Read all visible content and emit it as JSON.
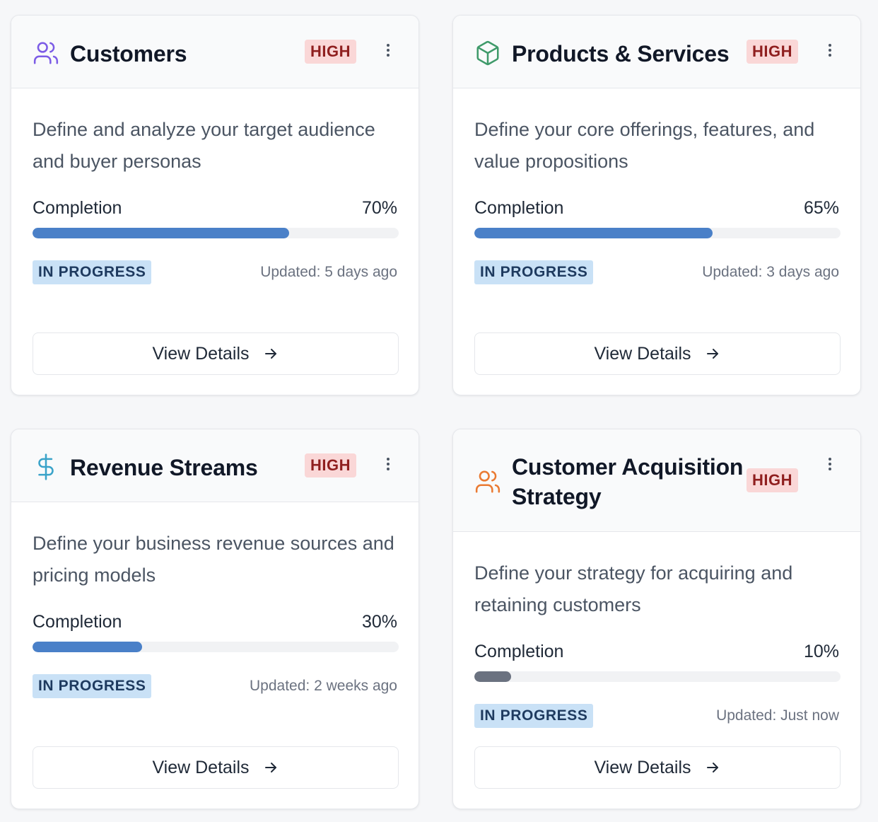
{
  "cards": [
    {
      "title": "Customers",
      "icon": "users-icon",
      "icon_color": "#7c5ce6",
      "priority": "HIGH",
      "description": "Define and analyze your target audience and buyer personas",
      "completion_label": "Completion",
      "completion_text": "70%",
      "completion": 70,
      "bar_color": "#4a80c8",
      "status": "IN PROGRESS",
      "updated": "Updated: 5 days ago",
      "button_label": "View Details"
    },
    {
      "title": "Products & Services",
      "icon": "box-icon",
      "icon_color": "#3f9a6a",
      "priority": "HIGH",
      "description": "Define your core offerings, features, and value propositions",
      "completion_label": "Completion",
      "completion_text": "65%",
      "completion": 65,
      "bar_color": "#4a80c8",
      "status": "IN PROGRESS",
      "updated": "Updated: 3 days ago",
      "button_label": "View Details"
    },
    {
      "title": "Revenue Streams",
      "icon": "dollar-icon",
      "icon_color": "#3aa3c9",
      "priority": "HIGH",
      "description": "Define your business revenue sources and pricing models",
      "completion_label": "Completion",
      "completion_text": "30%",
      "completion": 30,
      "bar_color": "#4a80c8",
      "status": "IN PROGRESS",
      "updated": "Updated: 2 weeks ago",
      "button_label": "View Details"
    },
    {
      "title": "Customer Acquisition Strategy",
      "icon": "users-icon",
      "icon_color": "#ea7a32",
      "priority": "HIGH",
      "description": "Define your strategy for acquiring and retaining customers",
      "completion_label": "Completion",
      "completion_text": "10%",
      "completion": 10,
      "bar_color": "#6b7280",
      "status": "IN PROGRESS",
      "updated": "Updated: Just now",
      "button_label": "View Details"
    }
  ]
}
